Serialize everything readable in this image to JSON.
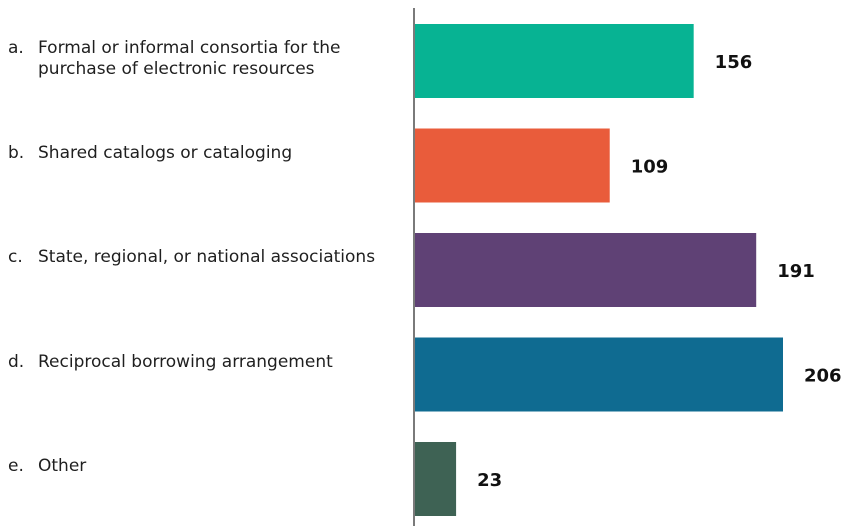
{
  "chart_data": {
    "type": "bar",
    "orientation": "horizontal",
    "categories": [
      {
        "letter": "a.",
        "text": "Formal or informal consortia for the purchase of electronic resources"
      },
      {
        "letter": "b.",
        "text": "Shared catalogs or cataloging"
      },
      {
        "letter": "c.",
        "text": "State, regional, or national associations"
      },
      {
        "letter": "d.",
        "text": "Reciprocal borrowing arrangement"
      },
      {
        "letter": "e.",
        "text": "Other"
      }
    ],
    "values": [
      156,
      109,
      191,
      206,
      23
    ],
    "value_labels": [
      "156",
      "109",
      "191",
      "206",
      "23"
    ],
    "colors": [
      "#07b393",
      "#e95c3b",
      "#5f4175",
      "#0f6b91",
      "#3e6254"
    ],
    "xlim": [
      0,
      206
    ],
    "title": "",
    "xlabel": "",
    "ylabel": "",
    "grid": false,
    "legend": "none"
  }
}
